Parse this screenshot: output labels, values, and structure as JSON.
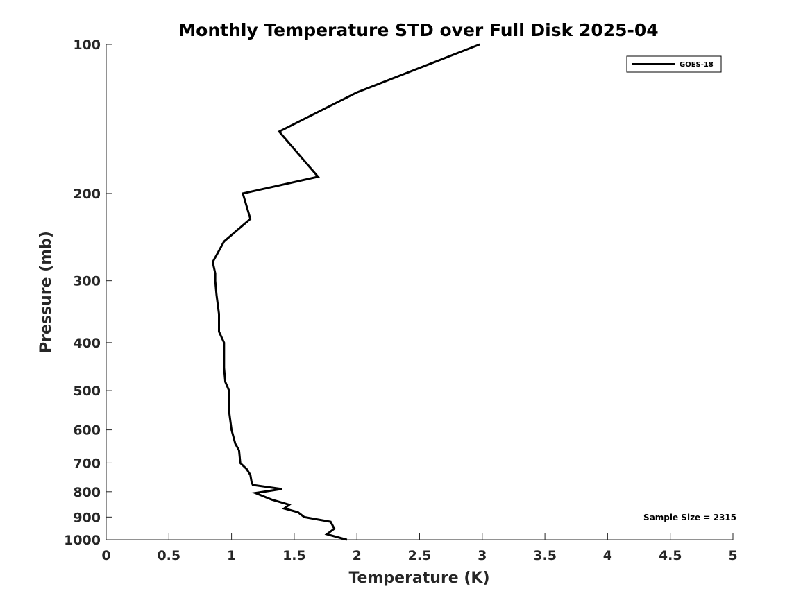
{
  "chart_data": {
    "type": "line",
    "title": "Monthly Temperature STD over Full Disk  2025-04",
    "xlabel": "Temperature (K)",
    "ylabel": "Pressure (mb)",
    "xlim": [
      0,
      5
    ],
    "ylim": [
      1000,
      100
    ],
    "y_scale": "log",
    "x_ticks": [
      "0",
      "0.5",
      "1",
      "1.5",
      "2",
      "2.5",
      "3",
      "3.5",
      "4",
      "4.5",
      "5"
    ],
    "y_ticks": [
      "100",
      "200",
      "300",
      "400",
      "500",
      "600",
      "700",
      "800",
      "900",
      "1000"
    ],
    "grid": false,
    "legend_position": "top-right",
    "annotation": "Sample Size = 2315",
    "series": [
      {
        "name": "GOES-18",
        "color": "#000000",
        "points": [
          [
            2.98,
            100
          ],
          [
            2.0,
            125
          ],
          [
            1.38,
            150
          ],
          [
            1.69,
            185
          ],
          [
            1.09,
            200
          ],
          [
            1.15,
            225
          ],
          [
            0.94,
            250
          ],
          [
            0.85,
            275
          ],
          [
            0.87,
            290
          ],
          [
            0.87,
            300
          ],
          [
            0.88,
            320
          ],
          [
            0.9,
            350
          ],
          [
            0.9,
            380
          ],
          [
            0.94,
            400
          ],
          [
            0.94,
            450
          ],
          [
            0.95,
            480
          ],
          [
            0.98,
            500
          ],
          [
            0.98,
            550
          ],
          [
            1.0,
            600
          ],
          [
            1.03,
            640
          ],
          [
            1.06,
            660
          ],
          [
            1.07,
            700
          ],
          [
            1.12,
            720
          ],
          [
            1.15,
            740
          ],
          [
            1.16,
            765
          ],
          [
            1.17,
            775
          ],
          [
            1.4,
            790
          ],
          [
            1.19,
            805
          ],
          [
            1.32,
            830
          ],
          [
            1.46,
            850
          ],
          [
            1.42,
            865
          ],
          [
            1.53,
            880
          ],
          [
            1.58,
            900
          ],
          [
            1.79,
            920
          ],
          [
            1.82,
            950
          ],
          [
            1.76,
            975
          ],
          [
            1.92,
            1000
          ]
        ]
      }
    ]
  }
}
